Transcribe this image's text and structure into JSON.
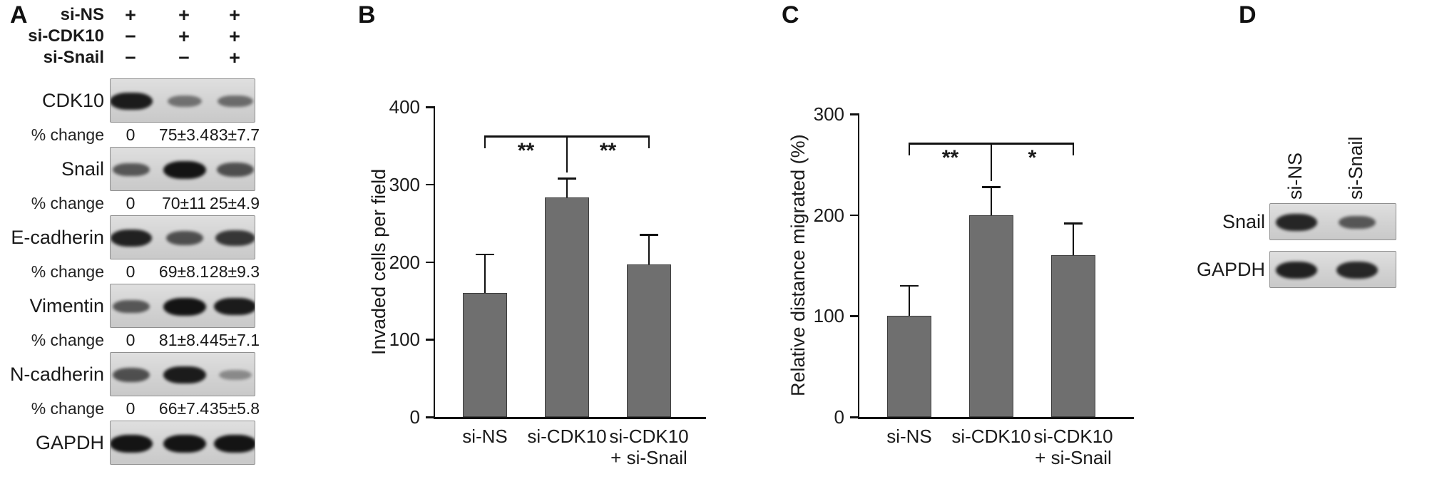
{
  "panel_a": {
    "label": "A",
    "header_rows": [
      {
        "label": "si-NS",
        "signs": [
          "+",
          "+",
          "+"
        ]
      },
      {
        "label": "si-CDK10",
        "signs": [
          "−",
          "+",
          "+"
        ]
      },
      {
        "label": "si-Snail",
        "signs": [
          "−",
          "−",
          "+"
        ]
      }
    ],
    "pct_change_label": "% change",
    "blots": [
      {
        "name": "CDK10",
        "band_intensities": [
          0.95,
          0.3,
          0.35
        ],
        "pct_change": [
          "0",
          "75±3.4",
          "83±7.7"
        ]
      },
      {
        "name": "Snail",
        "band_intensities": [
          0.5,
          1.0,
          0.55
        ],
        "pct_change": [
          "0",
          "70±11",
          "25±4.9"
        ]
      },
      {
        "name": "E-cadherin",
        "band_intensities": [
          0.9,
          0.55,
          0.75
        ],
        "pct_change": [
          "0",
          "69±8.1",
          "28±9.3"
        ]
      },
      {
        "name": "Vimentin",
        "band_intensities": [
          0.5,
          1.0,
          0.95
        ],
        "pct_change": [
          "0",
          "81±8.4",
          "45±7.1"
        ]
      },
      {
        "name": "N-cadherin",
        "band_intensities": [
          0.55,
          0.95,
          0.12
        ],
        "pct_change": [
          "0",
          "66±7.4",
          "35±5.8"
        ]
      },
      {
        "name": "GAPDH",
        "band_intensities": [
          1.0,
          1.0,
          1.0
        ],
        "pct_change": null
      }
    ]
  },
  "chart_data": [
    {
      "panel": "B",
      "type": "bar",
      "categories": [
        "si-NS",
        "si-CDK10",
        "si-CDK10 + si-Snail"
      ],
      "category_lines": [
        [
          "si-NS"
        ],
        [
          "si-CDK10"
        ],
        [
          "si-CDK10",
          "+ si-Snail"
        ]
      ],
      "values": [
        160,
        283,
        197
      ],
      "errors": [
        50,
        25,
        38
      ],
      "ylabel": "Invaded cells per field",
      "xlabel": "",
      "ylim": [
        0,
        400
      ],
      "yticks": [
        0,
        100,
        200,
        300,
        400
      ],
      "bar_color": "#6f6f6f",
      "axis_color": "#111111",
      "grid": false,
      "significance": [
        {
          "between": [
            0,
            1
          ],
          "label": "**"
        },
        {
          "between": [
            1,
            2
          ],
          "label": "**"
        }
      ]
    },
    {
      "panel": "C",
      "type": "bar",
      "categories": [
        "si-NS",
        "si-CDK10",
        "si-CDK10 + si-Snail"
      ],
      "category_lines": [
        [
          "si-NS"
        ],
        [
          "si-CDK10"
        ],
        [
          "si-CDK10",
          "+ si-Snail"
        ]
      ],
      "values": [
        100,
        200,
        160
      ],
      "errors": [
        30,
        28,
        32
      ],
      "ylabel": "Relative distance migrated (%)",
      "xlabel": "",
      "ylim": [
        0,
        300
      ],
      "yticks": [
        0,
        100,
        200,
        300
      ],
      "bar_color": "#6f6f6f",
      "axis_color": "#111111",
      "grid": false,
      "significance": [
        {
          "between": [
            0,
            1
          ],
          "label": "**"
        },
        {
          "between": [
            1,
            2
          ],
          "label": "*"
        }
      ]
    }
  ],
  "panel_d": {
    "label": "D",
    "lane_labels": [
      "si-NS",
      "si-Snail"
    ],
    "rows": [
      {
        "name": "Snail",
        "band_intensities": [
          0.85,
          0.5
        ]
      },
      {
        "name": "GAPDH",
        "band_intensities": [
          0.9,
          0.85
        ]
      }
    ]
  }
}
